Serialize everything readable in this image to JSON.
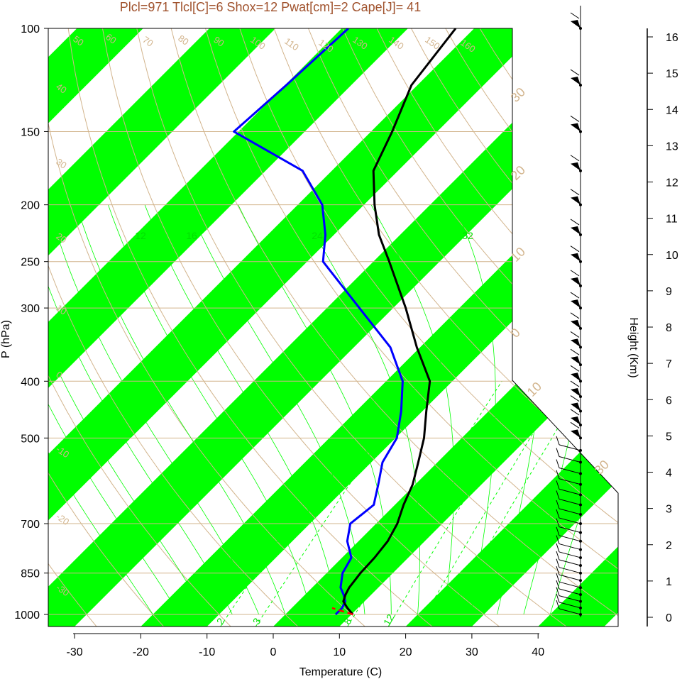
{
  "title": "Plcl=971 Tlcl[C]=6 Shox=12 Pwat[cm]=2 Cape[J]= 41",
  "colors": {
    "band": "#00ff00",
    "guide": "#d2b48c",
    "temperature": "#000000",
    "dewpoint": "#0000ff",
    "parcel_below_lcl": "#ff0000",
    "title": "#a0522d"
  },
  "chart_data": {
    "type": "skew-t log-p",
    "xlabel": "Temperature (C)",
    "ylabel": "P (hPa)",
    "y2label": "Height (Km)",
    "xlim": [
      -33,
      53
    ],
    "ylim": [
      1050,
      100
    ],
    "x_ticks": [
      "-30",
      "-20",
      "-10",
      "0",
      "10",
      "20",
      "30",
      "40"
    ],
    "p_ticks": [
      "100",
      "150",
      "200",
      "250",
      "300",
      "400",
      "500",
      "700",
      "850",
      "1000"
    ],
    "height_ticks": [
      "0",
      "1",
      "2",
      "3",
      "4",
      "5",
      "6",
      "7",
      "8",
      "9",
      "10",
      "11",
      "12",
      "13",
      "14",
      "15",
      "16"
    ],
    "isobar_levels": [
      100,
      150,
      200,
      250,
      300,
      400,
      500,
      700,
      850,
      1000
    ],
    "dry_adiabat_labels": [
      "-30",
      "-20",
      "-10",
      "0",
      "10",
      "20",
      "30",
      "40",
      "50",
      "60",
      "70",
      "80",
      "90",
      "100",
      "110",
      "120",
      "130",
      "140",
      "150",
      "160"
    ],
    "side_isotherm_labels": [
      "-10",
      "0",
      "10",
      "20",
      "30"
    ],
    "mixing_ratio_labels_top": [
      "12",
      "16",
      "24",
      "32"
    ],
    "mixing_ratio_labels_bottom": [
      "2",
      "3",
      "8",
      "12"
    ],
    "temperature": {
      "name": "",
      "p": [
        1000,
        975,
        950,
        925,
        900,
        850,
        800,
        750,
        700,
        650,
        600,
        550,
        500,
        450,
        400,
        350,
        300,
        250,
        225,
        200,
        175,
        150,
        125,
        100
      ],
      "t": [
        10.2,
        8.4,
        6.8,
        6.1,
        5.6,
        5.1,
        4.9,
        4.4,
        3.2,
        1.3,
        -0.4,
        -2.9,
        -5.7,
        -9.4,
        -13.4,
        -20.5,
        -28.1,
        -37.6,
        -43.2,
        -48.4,
        -53.7,
        -56.8,
        -60.9,
        -62.8
      ]
    },
    "dewpoint": {
      "name": "",
      "p": [
        1000,
        975,
        950,
        925,
        900,
        850,
        800,
        750,
        700,
        650,
        600,
        550,
        500,
        450,
        400,
        350,
        300,
        250,
        225,
        200,
        175,
        150,
        125,
        100
      ],
      "td": [
        7.6,
        7.6,
        7.1,
        5.8,
        4.3,
        2.4,
        1.4,
        -1.7,
        -3.9,
        -3.2,
        -5.6,
        -8.3,
        -9.8,
        -13.2,
        -17.5,
        -24.5,
        -35.1,
        -47.6,
        -51.3,
        -56.3,
        -64.4,
        -80.7,
        -79.8,
        -79.0
      ]
    },
    "parcel_below_lcl": {
      "name": "",
      "p": [
        1000,
        975
      ],
      "t": [
        10.2,
        6.1
      ]
    },
    "wind_levels_hpa": [
      1000,
      975,
      950,
      925,
      900,
      875,
      850,
      825,
      800,
      775,
      750,
      725,
      700,
      675,
      650,
      625,
      600,
      575,
      550,
      525,
      500,
      475,
      450,
      425,
      400,
      375,
      350,
      325,
      300,
      275,
      250,
      225,
      200,
      175,
      150,
      125,
      100
    ],
    "grid": true,
    "legend": "none"
  }
}
